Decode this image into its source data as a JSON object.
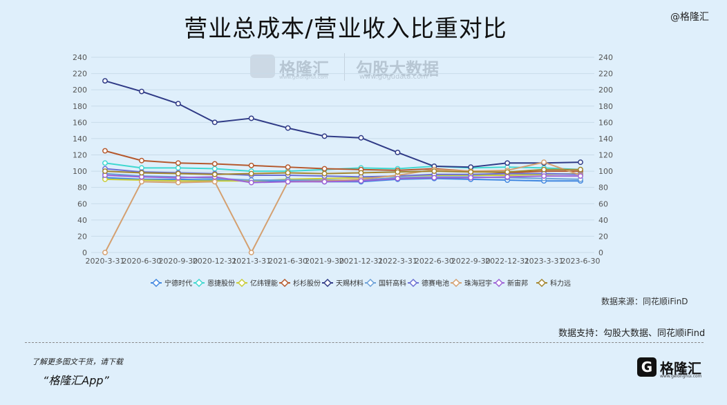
{
  "page": {
    "title": "营业总成本/营业收入比重对比",
    "corner_brand": "@格隆汇",
    "watermark_logo": "格隆汇",
    "watermark_logo_url": "www.gelonghui.com",
    "watermark_brand": "勾股大数据",
    "watermark_url": "www.gogudata.com",
    "source_label": "数据来源：同花顺iFinD",
    "support_text": "数据支持：勾股大数据、同花顺iFind",
    "promo_line1": "了解更多图文干货，请下载",
    "promo_line2": "“格隆汇App”",
    "brand_name": "格隆汇",
    "brand_url": "www.gelonghui.com",
    "brand_icon": "G"
  },
  "chart_data": {
    "type": "line",
    "title": "营业总成本/营业收入比重对比",
    "categories": [
      "2020-3-31",
      "2020-6-30",
      "2020-9-30",
      "2020-12-31",
      "2021-3-31",
      "2021-6-30",
      "2021-9-30",
      "2021-12-31",
      "2022-3-31",
      "2022-6-30",
      "2022-9-30",
      "2022-12-31",
      "2023-3-31",
      "2023-6-30"
    ],
    "ylim": [
      0,
      240
    ],
    "yticks": [
      0,
      20,
      40,
      60,
      80,
      100,
      120,
      140,
      160,
      180,
      200,
      220,
      240
    ],
    "grid": true,
    "dual_axis_mirrored": true,
    "legend_position": "bottom",
    "series": [
      {
        "name": "宁德时代",
        "color": "#3f86e0",
        "values": [
          92,
          90,
          90,
          89,
          88,
          88,
          87,
          87,
          90,
          91,
          90,
          89,
          88,
          88
        ]
      },
      {
        "name": "恩捷股份",
        "color": "#3fd8d0",
        "values": [
          110,
          104,
          104,
          103,
          100,
          100,
          102,
          104,
          103,
          106,
          104,
          105,
          104,
          102
        ]
      },
      {
        "name": "亿纬锂能",
        "color": "#c9cc35",
        "values": [
          90,
          89,
          88,
          88,
          88,
          90,
          91,
          92,
          94,
          95,
          95,
          95,
          96,
          97
        ]
      },
      {
        "name": "杉杉股份",
        "color": "#b5582c",
        "values": [
          125,
          113,
          110,
          109,
          107,
          105,
          103,
          102,
          101,
          103,
          100,
          98,
          100,
          100
        ]
      },
      {
        "name": "天赐材料",
        "color": "#2f3a86",
        "values": [
          211,
          198,
          183,
          160,
          165,
          153,
          143,
          141,
          123,
          106,
          105,
          110,
          110,
          111
        ]
      },
      {
        "name": "国轩高科",
        "color": "#6aa0d8",
        "values": [
          97,
          94,
          93,
          91,
          89,
          89,
          89,
          89,
          92,
          93,
          93,
          92,
          91,
          90
        ]
      },
      {
        "name": "德赛电池",
        "color": "#6b6fd2",
        "values": [
          103,
          99,
          98,
          97,
          95,
          95,
          94,
          93,
          94,
          96,
          96,
          97,
          97,
          96
        ]
      },
      {
        "name": "珠海冠宇",
        "color": "#d4a070",
        "values": [
          0,
          87,
          86,
          87,
          0,
          87,
          88,
          90,
          95,
          102,
          100,
          101,
          111,
          95
        ]
      },
      {
        "name": "新宙邦",
        "color": "#9d62d6",
        "values": [
          95,
          93,
          92,
          93,
          86,
          87,
          87,
          88,
          91,
          92,
          92,
          93,
          94,
          94
        ]
      },
      {
        "name": "科力远",
        "color": "#a3842c",
        "values": [
          100,
          98,
          97,
          96,
          97,
          98,
          97,
          98,
          99,
          100,
          99,
          99,
          102,
          102
        ]
      }
    ]
  }
}
